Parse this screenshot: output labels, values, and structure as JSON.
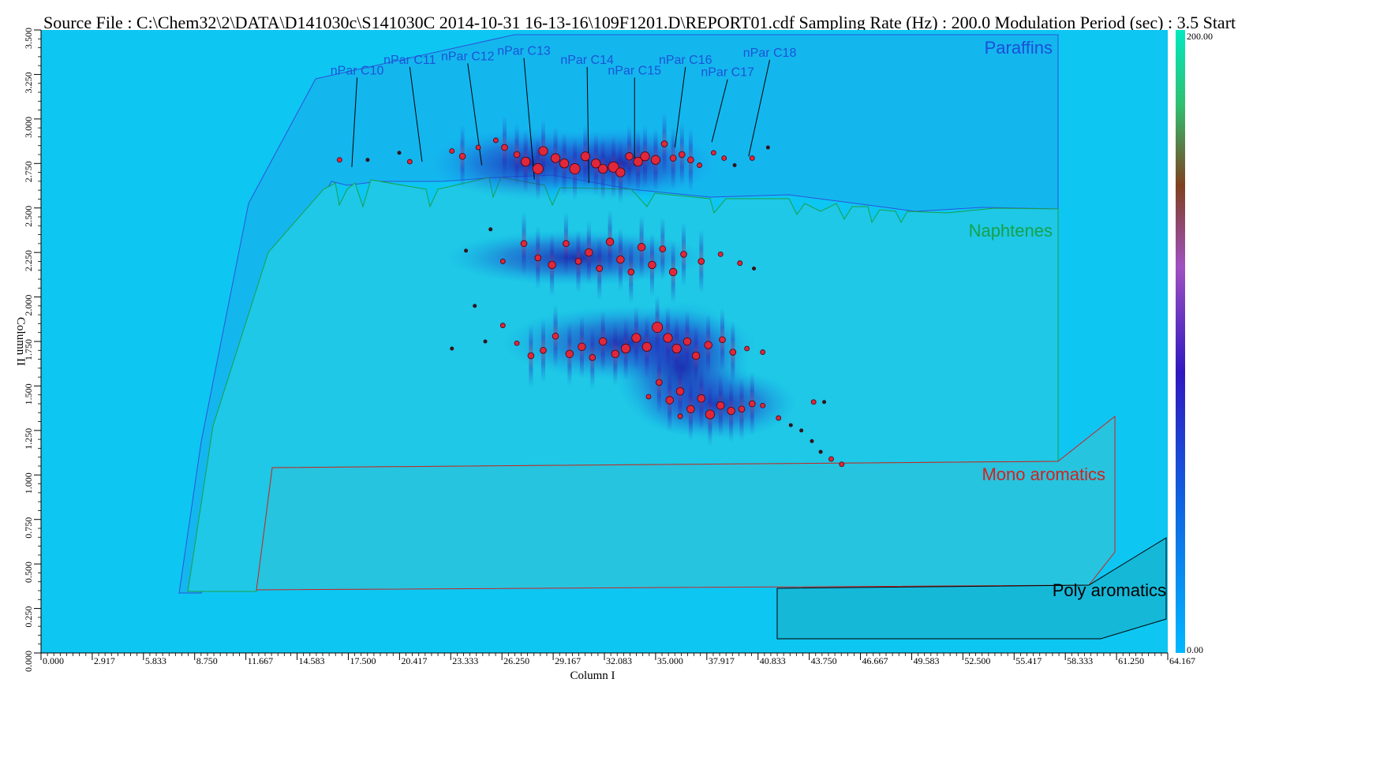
{
  "header": {
    "title": "Source File : C:\\Chem32\\2\\DATA\\D141030c\\S141030C 2014-10-31 16-13-16\\109F1201.D\\REPORT01.cdf  Sampling Rate (Hz) : 200.0  Modulation Period (sec) : 3.5  Start"
  },
  "chart_data": {
    "type": "heatmap",
    "xlabel": "Column I",
    "ylabel": "Column II",
    "xlim": [
      0.0,
      64.167
    ],
    "ylim": [
      0.0,
      3.5
    ],
    "x_ticks": [
      "0.000",
      "2.917",
      "5.833",
      "8.750",
      "11.667",
      "14.583",
      "17.500",
      "20.417",
      "23.333",
      "26.250",
      "29.167",
      "32.083",
      "35.000",
      "37.917",
      "40.833",
      "43.750",
      "46.667",
      "49.583",
      "52.500",
      "55.417",
      "58.333",
      "61.250",
      "64.167"
    ],
    "y_ticks": [
      "0.000",
      "0.250",
      "0.500",
      "0.750",
      "1.000",
      "1.250",
      "1.500",
      "1.750",
      "2.000",
      "2.250",
      "2.500",
      "2.750",
      "3.000",
      "3.250",
      "3.500"
    ],
    "colorbar": {
      "min_label": "0.00",
      "max_label": "200.00",
      "colors": [
        "#00b8ff",
        "#1060e0",
        "#3018c0",
        "#8030d0",
        "#a050c0",
        "#804020",
        "#30c070",
        "#00e8c0"
      ]
    },
    "regions": [
      {
        "name": "Paraffins",
        "color": "#1b4fd8"
      },
      {
        "name": "Naphtenes",
        "color": "#16a24a"
      },
      {
        "name": "Mono aromatics",
        "color": "#d42020"
      },
      {
        "name": "Poly aromatics",
        "color": "#000000"
      }
    ],
    "peak_labels": [
      {
        "label": "nPar C10",
        "x": 18.0,
        "y": 3.25,
        "tx": 17.7,
        "ty": 2.73
      },
      {
        "label": "nPar C11",
        "x": 21.0,
        "y": 3.31,
        "tx": 21.7,
        "ty": 2.76
      },
      {
        "label": "nPar C12",
        "x": 24.3,
        "y": 3.33,
        "tx": 25.1,
        "ty": 2.74
      },
      {
        "label": "nPar C13",
        "x": 27.5,
        "y": 3.36,
        "tx": 28.1,
        "ty": 2.66
      },
      {
        "label": "nPar C14",
        "x": 31.1,
        "y": 3.31,
        "tx": 31.2,
        "ty": 2.64
      },
      {
        "label": "nPar C15",
        "x": 33.8,
        "y": 3.25,
        "tx": 33.8,
        "ty": 2.74
      },
      {
        "label": "nPar C16",
        "x": 36.7,
        "y": 3.31,
        "tx": 36.1,
        "ty": 2.84
      },
      {
        "label": "nPar C17",
        "x": 39.1,
        "y": 3.24,
        "tx": 38.2,
        "ty": 2.87
      },
      {
        "label": "nPar C18",
        "x": 41.5,
        "y": 3.35,
        "tx": 40.3,
        "ty": 2.79
      }
    ],
    "peaks": [
      [
        17.0,
        2.77,
        2
      ],
      [
        18.6,
        2.77,
        1
      ],
      [
        20.4,
        2.81,
        1
      ],
      [
        21.0,
        2.76,
        2
      ],
      [
        23.4,
        2.82,
        2
      ],
      [
        24.0,
        2.79,
        3
      ],
      [
        24.9,
        2.84,
        2
      ],
      [
        25.9,
        2.88,
        2
      ],
      [
        26.4,
        2.84,
        3
      ],
      [
        27.1,
        2.8,
        3
      ],
      [
        27.6,
        2.76,
        5
      ],
      [
        28.3,
        2.72,
        6
      ],
      [
        28.6,
        2.82,
        5
      ],
      [
        29.3,
        2.78,
        5
      ],
      [
        29.8,
        2.75,
        5
      ],
      [
        30.4,
        2.72,
        6
      ],
      [
        31.0,
        2.79,
        5
      ],
      [
        31.6,
        2.75,
        5
      ],
      [
        32.0,
        2.72,
        5
      ],
      [
        32.6,
        2.73,
        6
      ],
      [
        33.0,
        2.7,
        5
      ],
      [
        33.5,
        2.79,
        4
      ],
      [
        34.0,
        2.76,
        5
      ],
      [
        34.4,
        2.79,
        5
      ],
      [
        35.0,
        2.77,
        5
      ],
      [
        35.5,
        2.86,
        3
      ],
      [
        36.0,
        2.78,
        3
      ],
      [
        36.5,
        2.8,
        3
      ],
      [
        37.0,
        2.77,
        3
      ],
      [
        37.5,
        2.74,
        2
      ],
      [
        38.3,
        2.81,
        2
      ],
      [
        38.9,
        2.78,
        2
      ],
      [
        39.5,
        2.74,
        1
      ],
      [
        40.5,
        2.78,
        2
      ],
      [
        41.4,
        2.84,
        1
      ],
      [
        25.6,
        2.38,
        1
      ],
      [
        27.5,
        2.3,
        3
      ],
      [
        28.3,
        2.22,
        3
      ],
      [
        29.1,
        2.18,
        4
      ],
      [
        29.9,
        2.3,
        3
      ],
      [
        30.6,
        2.2,
        3
      ],
      [
        31.2,
        2.25,
        4
      ],
      [
        31.8,
        2.16,
        3
      ],
      [
        32.4,
        2.31,
        4
      ],
      [
        33.0,
        2.21,
        4
      ],
      [
        33.6,
        2.14,
        3
      ],
      [
        34.2,
        2.28,
        4
      ],
      [
        34.8,
        2.18,
        4
      ],
      [
        35.4,
        2.27,
        3
      ],
      [
        36.0,
        2.14,
        4
      ],
      [
        36.6,
        2.24,
        3
      ],
      [
        37.6,
        2.2,
        3
      ],
      [
        38.7,
        2.24,
        2
      ],
      [
        39.8,
        2.19,
        2
      ],
      [
        40.6,
        2.16,
        1
      ],
      [
        24.2,
        2.26,
        1
      ],
      [
        26.3,
        2.2,
        2
      ],
      [
        24.7,
        1.95,
        1
      ],
      [
        26.3,
        1.84,
        2
      ],
      [
        27.1,
        1.74,
        2
      ],
      [
        27.9,
        1.67,
        3
      ],
      [
        28.6,
        1.7,
        3
      ],
      [
        29.3,
        1.78,
        3
      ],
      [
        30.1,
        1.68,
        4
      ],
      [
        30.8,
        1.72,
        4
      ],
      [
        31.4,
        1.66,
        3
      ],
      [
        32.0,
        1.75,
        4
      ],
      [
        32.7,
        1.68,
        4
      ],
      [
        33.3,
        1.71,
        5
      ],
      [
        33.9,
        1.77,
        5
      ],
      [
        34.5,
        1.72,
        5
      ],
      [
        35.1,
        1.83,
        6
      ],
      [
        35.7,
        1.77,
        5
      ],
      [
        36.2,
        1.71,
        5
      ],
      [
        36.8,
        1.75,
        4
      ],
      [
        37.3,
        1.67,
        4
      ],
      [
        38.0,
        1.73,
        4
      ],
      [
        38.8,
        1.76,
        3
      ],
      [
        39.4,
        1.69,
        3
      ],
      [
        40.2,
        1.71,
        2
      ],
      [
        41.1,
        1.69,
        2
      ],
      [
        23.4,
        1.71,
        1
      ],
      [
        25.3,
        1.75,
        1
      ],
      [
        35.2,
        1.52,
        3
      ],
      [
        35.8,
        1.42,
        4
      ],
      [
        36.4,
        1.47,
        4
      ],
      [
        37.0,
        1.37,
        4
      ],
      [
        37.6,
        1.43,
        4
      ],
      [
        38.1,
        1.34,
        5
      ],
      [
        38.7,
        1.39,
        4
      ],
      [
        39.3,
        1.36,
        4
      ],
      [
        39.9,
        1.37,
        3
      ],
      [
        40.5,
        1.4,
        3
      ],
      [
        41.1,
        1.39,
        2
      ],
      [
        42.0,
        1.32,
        2
      ],
      [
        42.7,
        1.28,
        1
      ],
      [
        43.3,
        1.25,
        1
      ],
      [
        43.9,
        1.19,
        1
      ],
      [
        44.4,
        1.13,
        1
      ],
      [
        45.0,
        1.09,
        2
      ],
      [
        45.6,
        1.06,
        2
      ],
      [
        44.0,
        1.41,
        2
      ],
      [
        44.6,
        1.41,
        1
      ],
      [
        34.6,
        1.44,
        2
      ],
      [
        36.4,
        1.33,
        2
      ]
    ],
    "grid": false
  }
}
